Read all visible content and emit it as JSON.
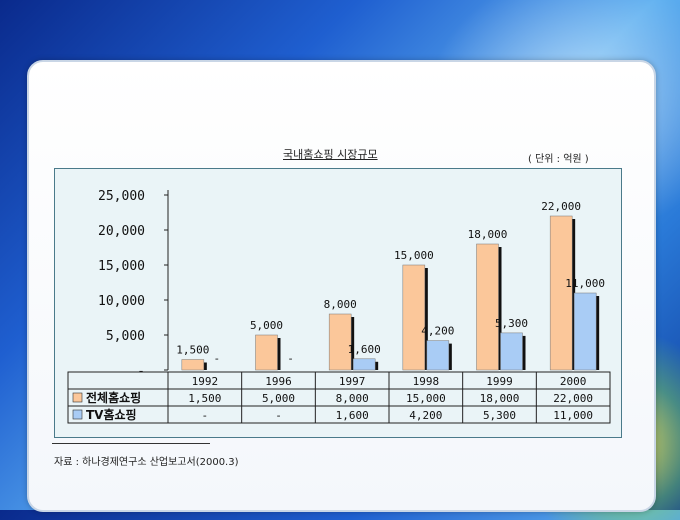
{
  "chart_data": {
    "type": "bar",
    "title": "국내홈쇼핑 시장규모",
    "unit_note": "( 단위 : 억원 )",
    "categories": [
      "1992",
      "1996",
      "1997",
      "1998",
      "1999",
      "2000"
    ],
    "series": [
      {
        "name": "전체홈쇼핑",
        "values": [
          1500,
          5000,
          8000,
          15000,
          18000,
          22000
        ],
        "labels": [
          "1,500",
          "5,000",
          "8,000",
          "15,000",
          "18,000",
          "22,000"
        ],
        "color": "#fbc79a"
      },
      {
        "name": "TV홈쇼핑",
        "values": [
          null,
          null,
          1600,
          4200,
          5300,
          11000
        ],
        "labels": [
          "-",
          "-",
          "1,600",
          "4,200",
          "5,300",
          "11,000"
        ],
        "color": "#a9ccf5"
      }
    ],
    "bar_labels": [
      [
        "1,500",
        "5,000",
        "8,000",
        "15,000",
        "18,000",
        "22,000"
      ],
      [
        "-",
        "-",
        "1,600",
        "4,200",
        "5,300",
        "11,000"
      ]
    ],
    "yticks": [
      "25,000",
      "20,000",
      "15,000",
      "10,000",
      "5,000",
      "-"
    ],
    "ytick_values": [
      25000,
      20000,
      15000,
      10000,
      5000,
      0
    ],
    "ylim": [
      0,
      25000
    ],
    "table": {
      "rows": [
        {
          "name": "전체홈쇼핑",
          "cells": [
            "1,500",
            "5,000",
            "8,000",
            "15,000",
            "18,000",
            "22,000"
          ]
        },
        {
          "name": "TV홈쇼핑",
          "cells": [
            "-",
            "-",
            "1,600",
            "4,200",
            "5,300",
            "11,000"
          ]
        }
      ]
    },
    "grid": false
  },
  "source": "자료 : 하나경제연구소 산업보고서(2000.3)"
}
